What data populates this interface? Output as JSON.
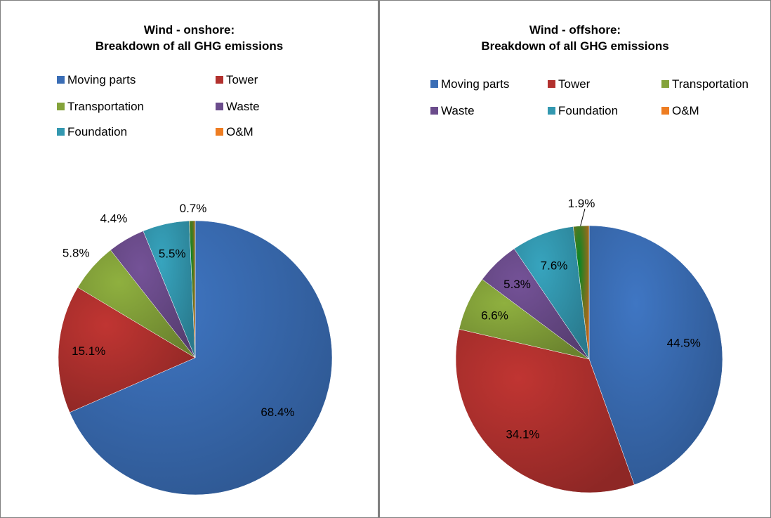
{
  "chart_data": [
    {
      "type": "pie",
      "title_lines": [
        "Wind - onshore:",
        "Breakdown of all GHG emissions"
      ],
      "legend_position": "top",
      "slices": [
        {
          "name": "Moving parts",
          "value": 68.4,
          "label": "68.4%",
          "color": "#3a6db5"
        },
        {
          "name": "Tower",
          "value": 15.1,
          "label": "15.1%",
          "color": "#b2312e"
        },
        {
          "name": "Transportation",
          "value": 5.8,
          "label": "5.8%",
          "color": "#84a33a"
        },
        {
          "name": "Waste",
          "value": 4.4,
          "label": "4.4%",
          "color": "#6b4c8c"
        },
        {
          "name": "Foundation",
          "value": 5.5,
          "label": "5.5%",
          "color": "#3398b0"
        },
        {
          "name": "O&M",
          "value": 0.7,
          "label": "0.7%",
          "color": "#ee7d22"
        }
      ]
    },
    {
      "type": "pie",
      "title_lines": [
        "Wind - offshore:",
        "Breakdown of all GHG emissions"
      ],
      "legend_position": "top",
      "slices": [
        {
          "name": "Moving parts",
          "value": 44.5,
          "label": "44.5%",
          "color": "#3a6db5"
        },
        {
          "name": "Tower",
          "value": 34.1,
          "label": "34.1%",
          "color": "#b2312e"
        },
        {
          "name": "Transportation",
          "value": 6.6,
          "label": "6.6%",
          "color": "#84a33a"
        },
        {
          "name": "Waste",
          "value": 5.3,
          "label": "5.3%",
          "color": "#6b4c8c"
        },
        {
          "name": "Foundation",
          "value": 7.6,
          "label": "7.6%",
          "color": "#3398b0"
        },
        {
          "name": "O&M",
          "value": 1.9,
          "label": "1.9%",
          "color": "#ee7d22"
        }
      ]
    }
  ]
}
